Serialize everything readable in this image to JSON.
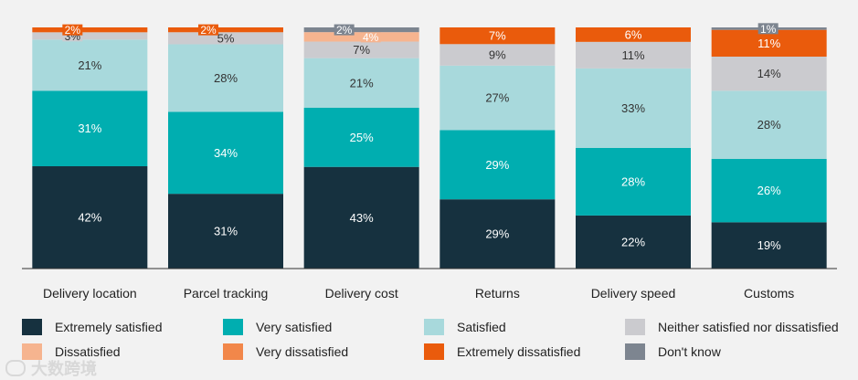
{
  "chart_data": {
    "type": "stacked-bar",
    "categories": [
      "Delivery location",
      "Parcel tracking",
      "Delivery cost",
      "Returns",
      "Delivery speed",
      "Customs"
    ],
    "series": [
      {
        "name": "Extremely satisfied",
        "color": "#16313f",
        "values": [
          42,
          31,
          43,
          29,
          22,
          19
        ],
        "labels": [
          "42%",
          "31%",
          "43%",
          "29%",
          "22%",
          "19%"
        ],
        "label_color": "#ffffff"
      },
      {
        "name": "Very satisfied",
        "color": "#00aeb0",
        "values": [
          31,
          34,
          25,
          29,
          28,
          26
        ],
        "labels": [
          "31%",
          "34%",
          "25%",
          "29%",
          "28%",
          "26%"
        ],
        "label_color": "#ffffff"
      },
      {
        "name": "Satisfied",
        "color": "#a8d9dc",
        "values": [
          21,
          28,
          21,
          27,
          33,
          28
        ],
        "labels": [
          "21%",
          "28%",
          "21%",
          "27%",
          "33%",
          "28%"
        ],
        "label_color": "#333333"
      },
      {
        "name": "Neither satisfied nor dissatisfied",
        "color": "#cbcbcf",
        "values": [
          3,
          5,
          7,
          9,
          11,
          14
        ],
        "labels": [
          "3%",
          "5%",
          "7%",
          "9%",
          "11%",
          "14%"
        ],
        "label_color": "#333333"
      },
      {
        "name": "Dissatisfied",
        "color": "#f6b48f",
        "values": [
          0,
          0,
          4,
          0,
          0,
          0
        ],
        "labels": [
          "",
          "",
          "4%",
          "",
          "",
          ""
        ],
        "label_color": "#ffffff"
      },
      {
        "name": "Very dissatisfied",
        "color": "#f2874a",
        "values": [
          0,
          0,
          0,
          0,
          0,
          0
        ],
        "labels": [
          "",
          "",
          "",
          "",
          "",
          ""
        ],
        "label_color": "#ffffff"
      },
      {
        "name": "Extremely dissatisfied",
        "color": "#ea5b0c",
        "values": [
          2,
          2,
          0,
          7,
          6,
          11
        ],
        "labels": [
          "2%",
          "2%",
          "",
          "7%",
          "6%",
          "11%"
        ],
        "label_color": "#ffffff"
      },
      {
        "name": "Don't know",
        "color": "#7d8590",
        "values": [
          0,
          0,
          2,
          0,
          0,
          1
        ],
        "labels": [
          "",
          "",
          "2%",
          "",
          "",
          "1%"
        ],
        "label_color": "#ffffff"
      }
    ],
    "ylim": [
      0,
      100
    ],
    "grid": false,
    "legend_position": "bottom"
  },
  "legend": [
    {
      "label": "Extremely satisfied",
      "color": "#16313f"
    },
    {
      "label": "Very satisfied",
      "color": "#00aeb0"
    },
    {
      "label": "Satisfied",
      "color": "#a8d9dc"
    },
    {
      "label": "Neither satisfied nor dissatisfied",
      "color": "#cbcbcf"
    },
    {
      "label": "Dissatisfied",
      "color": "#f6b48f"
    },
    {
      "label": "Very dissatisfied",
      "color": "#f2874a"
    },
    {
      "label": "Extremely dissatisfied",
      "color": "#ea5b0c"
    },
    {
      "label": "Don't know",
      "color": "#7d8590"
    }
  ],
  "watermark": {
    "text": "大数跨境"
  }
}
